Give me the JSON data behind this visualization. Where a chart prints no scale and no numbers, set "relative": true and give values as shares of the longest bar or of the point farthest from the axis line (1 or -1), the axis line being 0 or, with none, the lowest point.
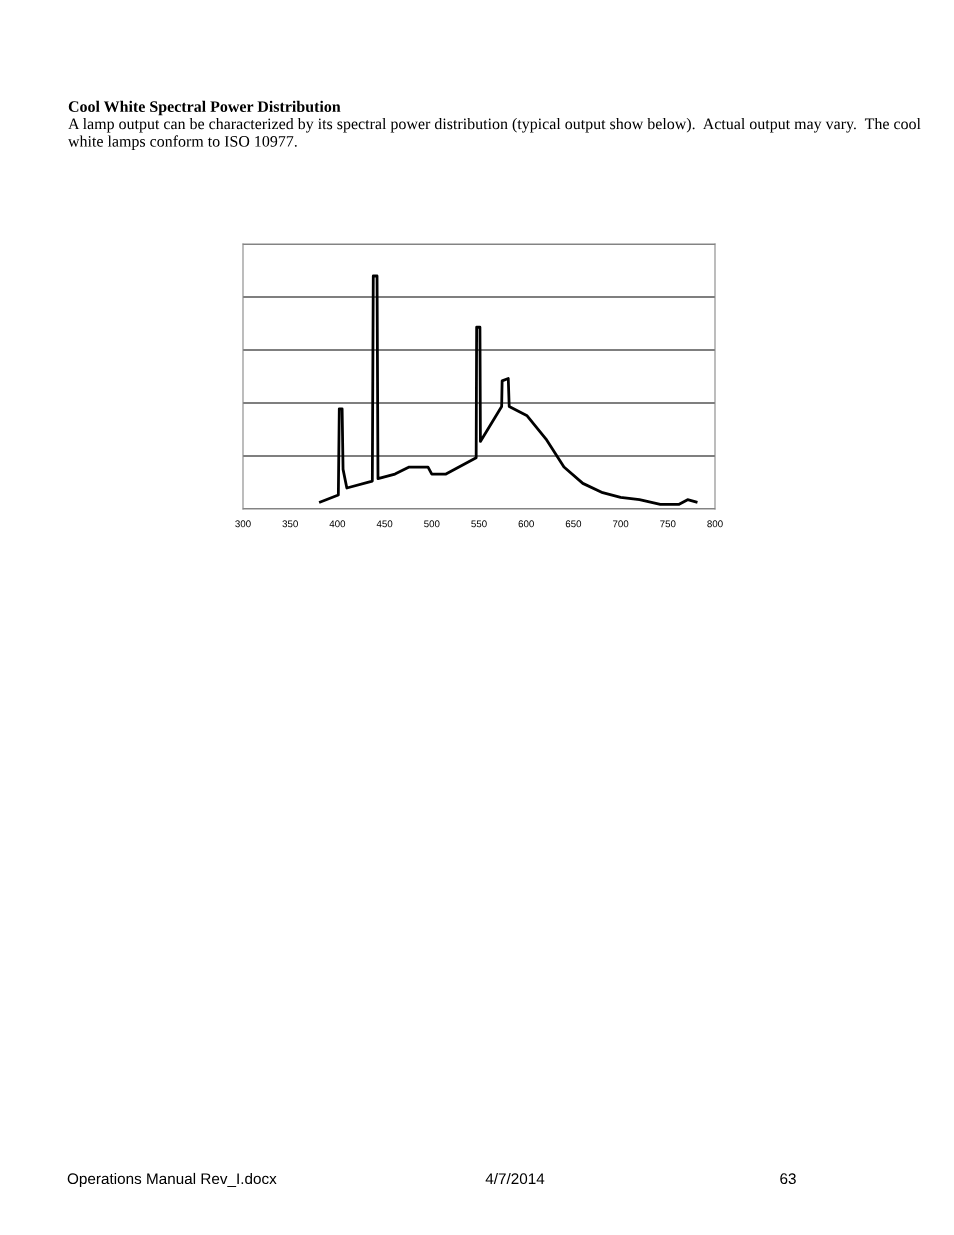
{
  "chart_data": {
    "type": "line",
    "relative": true,
    "title": "Cool White Spectral Power Distribution",
    "subtitle": "A lamp output can be characterized by its spectral power distribution (typical output show below).  Actual output may vary.  The cool white lamps conform to ISO 10977.",
    "x": [
      382,
      401,
      402,
      405,
      406,
      410,
      437,
      438,
      442,
      443,
      461,
      476,
      496,
      500,
      515,
      547,
      547.5,
      551,
      551.5,
      574,
      574.5,
      581,
      582,
      601,
      621,
      640,
      660,
      681,
      700,
      720,
      742,
      762,
      771,
      780
    ],
    "series": [
      {
        "color": "#000000",
        "values": [
          0.03,
          0.06,
          0.43,
          0.43,
          0.17,
          0.09,
          0.12,
          1.0,
          1.0,
          0.13,
          0.15,
          0.18,
          0.18,
          0.15,
          0.15,
          0.22,
          0.78,
          0.78,
          0.29,
          0.44,
          0.55,
          0.56,
          0.44,
          0.4,
          0.3,
          0.18,
          0.11,
          0.07,
          0.05,
          0.04,
          0.02,
          0.02,
          0.04,
          0.03
        ]
      }
    ],
    "xlim": [
      300,
      800
    ],
    "xticks": [
      300,
      350,
      400,
      450,
      500,
      550,
      600,
      650,
      700,
      750,
      800
    ],
    "grid": "y",
    "legend": false,
    "marker": "none",
    "line_style": "solid",
    "annotations": [
      "Operations Manual Rev_I.docx",
      "4/7/2014",
      "63"
    ]
  }
}
